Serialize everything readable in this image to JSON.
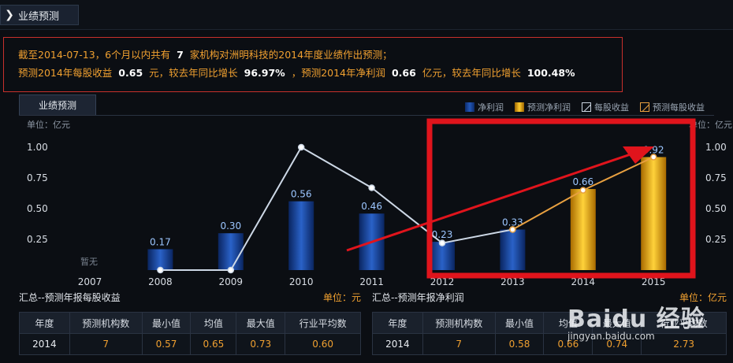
{
  "header": {
    "tab_label": "业绩预测"
  },
  "summary": {
    "line1_pre": "截至2014-07-13，6个月以内共有",
    "org_count": "7",
    "line1_post": "家机构对洲明科技的2014年度业绩作出预测；",
    "eps_pre": "预测2014年每股收益",
    "eps_value": "0.65",
    "eps_mid": "元，较去年同比增长",
    "eps_growth": "96.97%",
    "np_pre": "，预测2014年净利润",
    "np_value": "0.66",
    "np_mid": "亿元，较去年同比增长",
    "np_growth": "100.48%"
  },
  "chart_tab": {
    "label": "业绩预测"
  },
  "legend": [
    {
      "label": "净利润",
      "icon": "blue-bar-swatch"
    },
    {
      "label": "预测净利润",
      "icon": "gold-bar-swatch"
    },
    {
      "label": "每股收益",
      "icon": "white-line-swatch"
    },
    {
      "label": "预测每股收益",
      "icon": "orange-line-swatch"
    }
  ],
  "units": {
    "left": "单位：亿元",
    "right": "单位：亿元"
  },
  "chart_data": {
    "type": "bar",
    "categories": [
      "2007",
      "2008",
      "2009",
      "2010",
      "2011",
      "2012",
      "2013",
      "2014",
      "2015"
    ],
    "ylim": [
      0,
      1.1
    ],
    "yticks": [
      "1.00",
      "0.75",
      "0.50",
      "0.25"
    ],
    "no_data_label": "暂无",
    "series": [
      {
        "name": "净利润",
        "kind": "bar",
        "color": "#1e4fae",
        "values": [
          null,
          0.17,
          0.3,
          0.56,
          0.46,
          0.23,
          0.33,
          null,
          null
        ],
        "labels": [
          "",
          "0.17",
          "0.30",
          "0.56",
          "0.46",
          "0.23",
          "0.33",
          "",
          ""
        ]
      },
      {
        "name": "预测净利润",
        "kind": "bar",
        "color": "#f2b418",
        "values": [
          null,
          null,
          null,
          null,
          null,
          null,
          null,
          0.66,
          0.92
        ],
        "labels": [
          "",
          "",
          "",
          "",
          "",
          "",
          "",
          "0.66",
          "0.92"
        ]
      },
      {
        "name": "每股收益",
        "kind": "line",
        "color": "#cdd8e6",
        "values": [
          null,
          0.0,
          0.0,
          1.0,
          0.67,
          0.22,
          0.33,
          null,
          null
        ]
      },
      {
        "name": "预测每股收益",
        "kind": "line",
        "color": "#e8a040",
        "values": [
          null,
          null,
          null,
          null,
          null,
          null,
          0.33,
          0.65,
          0.92
        ]
      }
    ]
  },
  "eps_table": {
    "title": "汇总--预测年报每股收益",
    "unit": "单位：元",
    "headers": [
      "年度",
      "预测机构数",
      "最小值",
      "均值",
      "最大值",
      "行业平均数"
    ],
    "row": [
      "2014",
      "7",
      "0.57",
      "0.65",
      "0.73",
      "0.60"
    ]
  },
  "np_table": {
    "title": "汇总--预测年报净利润",
    "unit": "单位：亿元",
    "headers": [
      "年度",
      "预测机构数",
      "最小值",
      "均值",
      "最大值",
      "行业平均数"
    ],
    "row": [
      "2014",
      "7",
      "0.58",
      "0.66",
      "0.74",
      "2.73"
    ]
  },
  "annotation": {
    "highlight_color": "#e0141c"
  },
  "watermark": {
    "text": "Baidu 经验",
    "subtext": "jingyan.baidu.com"
  }
}
